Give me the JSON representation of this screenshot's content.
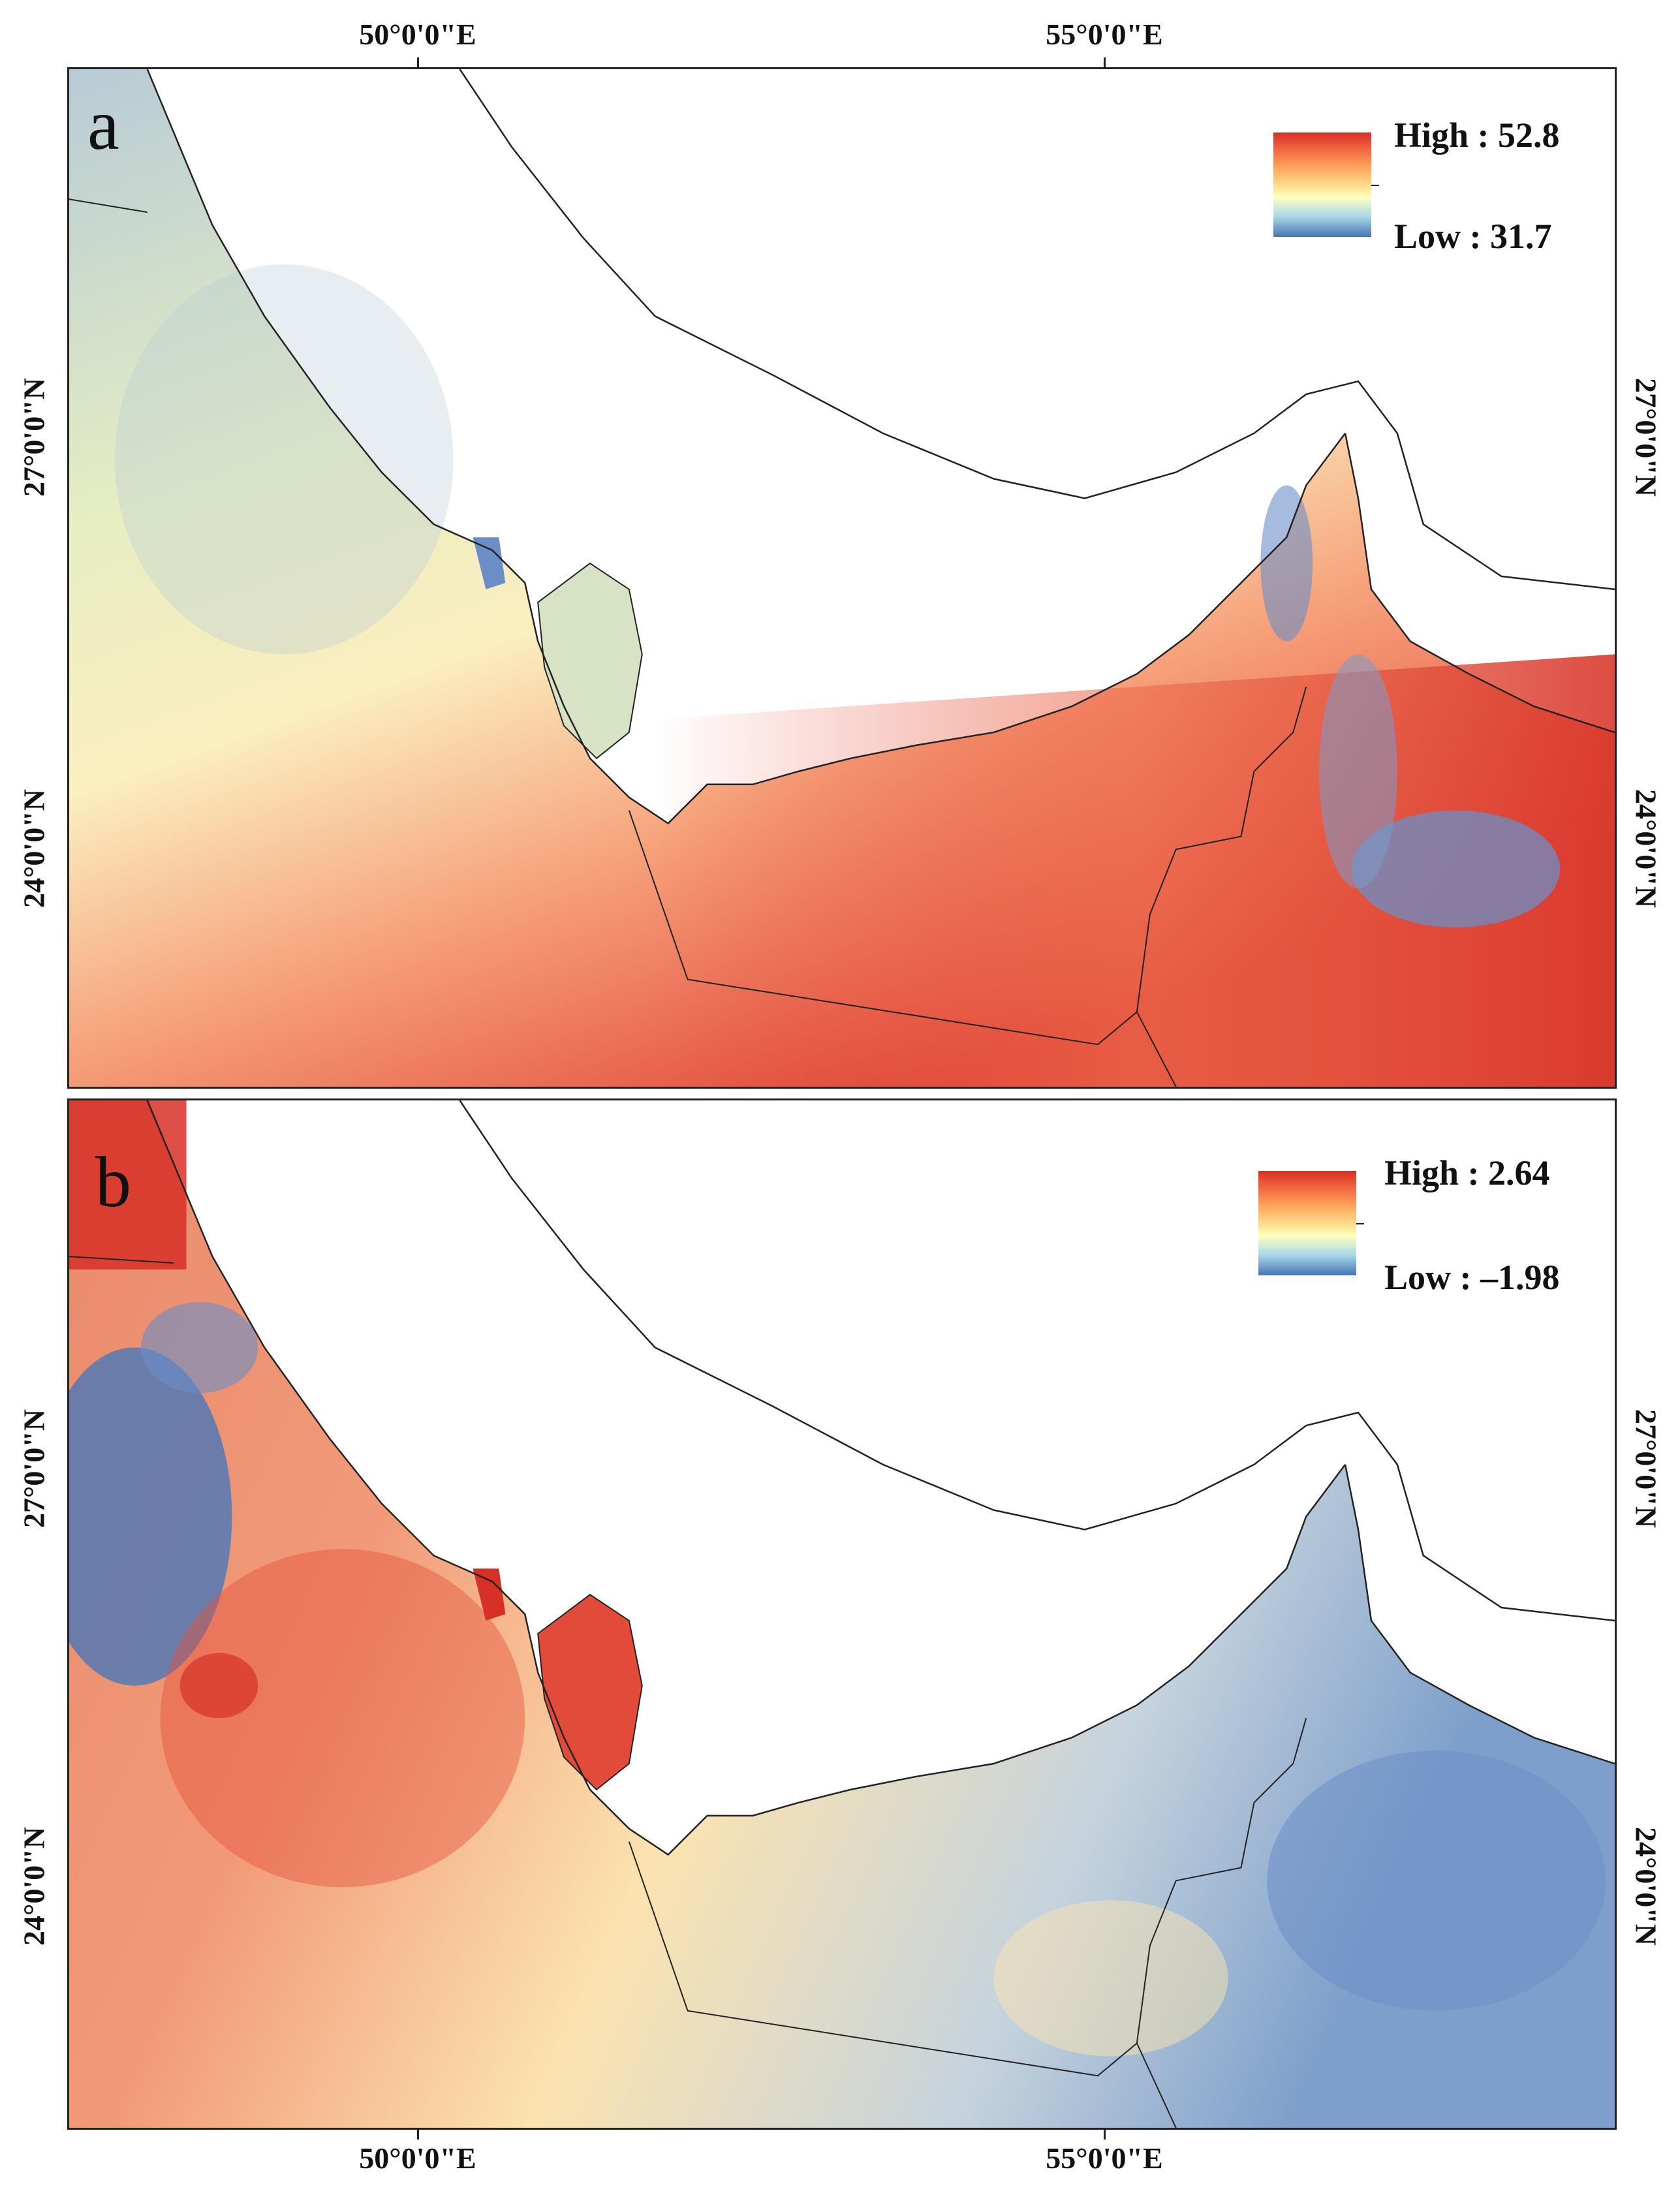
{
  "graticule": {
    "lon_labels": [
      "50°0'0\"E",
      "55°0'0\"E"
    ],
    "lat_labels": [
      "27°0'0\"N",
      "24°0'0\"N"
    ]
  },
  "panels": [
    {
      "letter": "a",
      "legend": {
        "high": "High : 52.8",
        "low": "Low : 31.7"
      }
    },
    {
      "letter": "b",
      "legend": {
        "high": "High : 2.64",
        "low": "Low : –1.98"
      }
    }
  ],
  "colors": {
    "high": "#d73027",
    "mid": "#ffffbf",
    "low": "#4575b4",
    "sea": "#ffffff",
    "outline": "#222222"
  }
}
